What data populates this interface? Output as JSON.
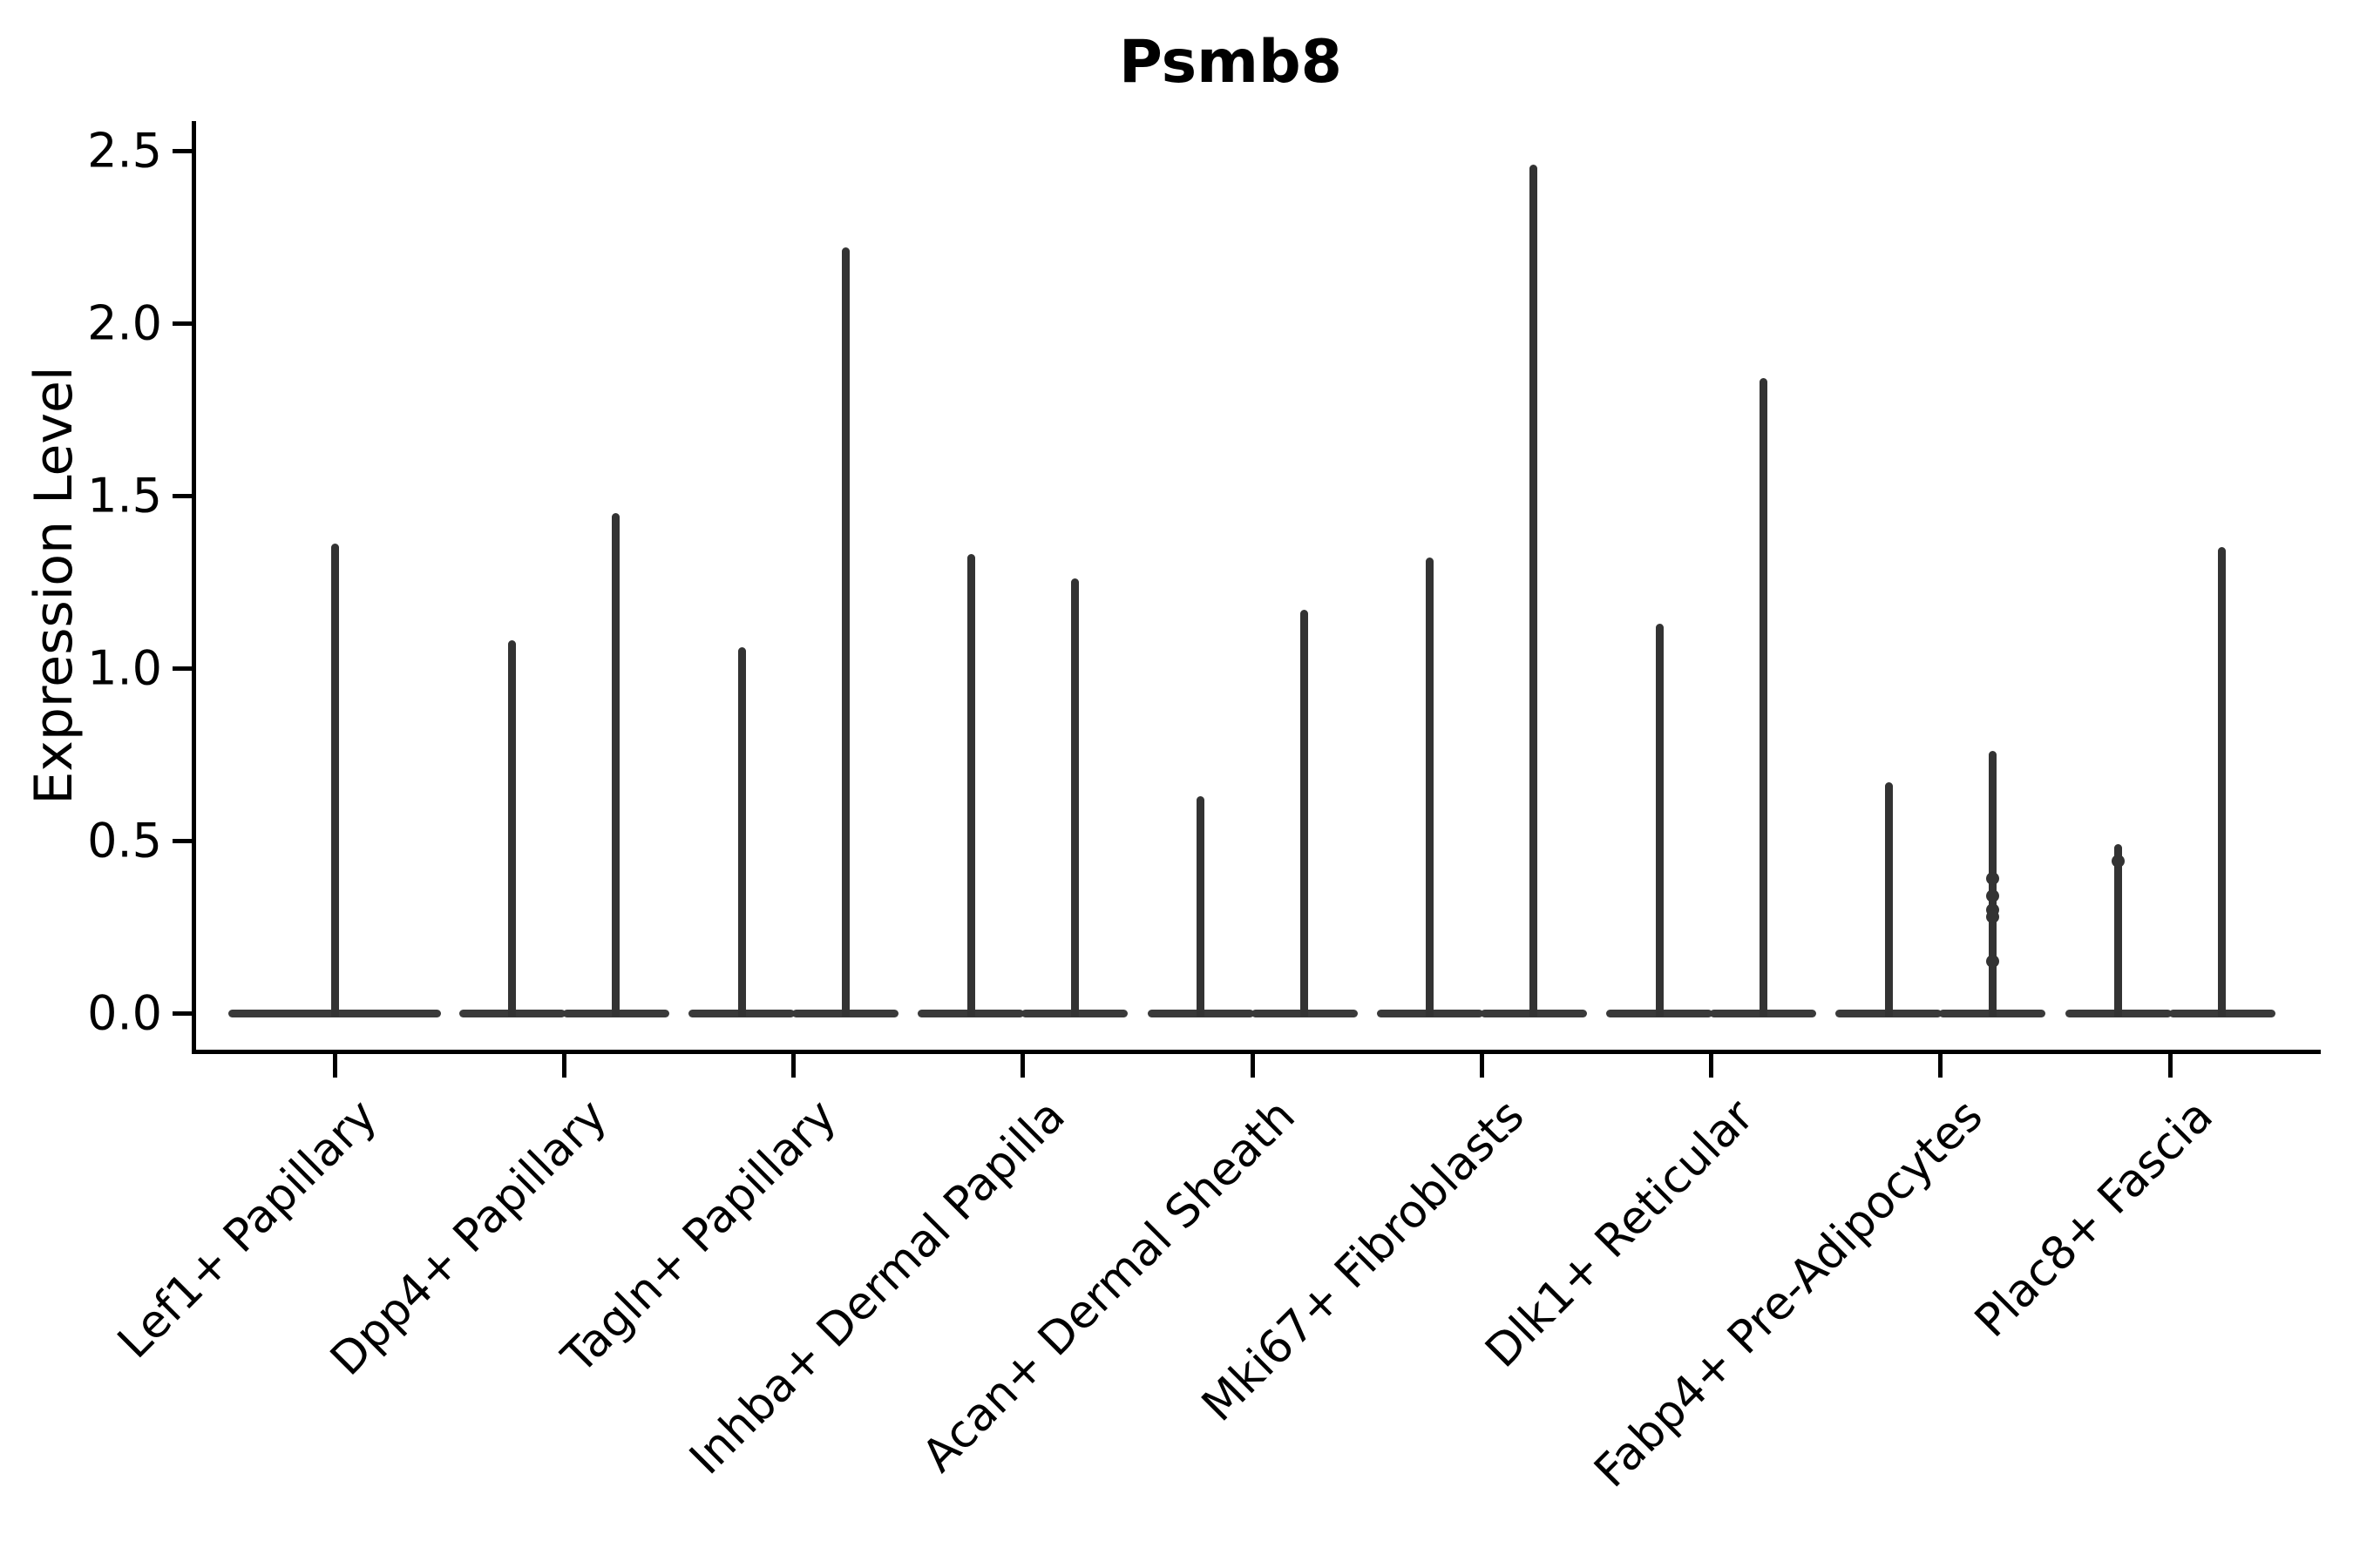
{
  "chart_data": {
    "type": "violin",
    "title": "Psmb8",
    "xlabel": "",
    "ylabel": "Expression Level",
    "ylim": [
      0,
      2.59
    ],
    "yticks": [
      0.0,
      0.5,
      1.0,
      1.5,
      2.0,
      2.5
    ],
    "ytick_labels": [
      "0.0",
      "0.5",
      "1.0",
      "1.5",
      "2.0",
      "2.5"
    ],
    "grid": false,
    "legend": "none",
    "orientation": "vertical",
    "note": "Seurat-style stacked violin of Psmb8 expression; most mass at 0 (flat baselines) with thin density spikes; two violins per category except Lef1+ Papillary which has one",
    "categories": [
      "Lef1+ Papillary",
      "Dpp4+ Papillary",
      "Tagln+ Papillary",
      "Inhba+ Dermal Papilla",
      "Acan+ Dermal Sheath",
      "Mki67+ Fibroblasts",
      "Dlk1+ Reticular",
      "Fabp4+ Pre-Adipocytes",
      "Plac8+ Fascia"
    ],
    "violins": [
      {
        "category": "Lef1+ Papillary",
        "maxima": [
          1.36
        ],
        "dots": [
          []
        ]
      },
      {
        "category": "Dpp4+ Papillary",
        "maxima": [
          1.08,
          1.45
        ],
        "dots": [
          [],
          []
        ]
      },
      {
        "category": "Tagln+ Papillary",
        "maxima": [
          1.06,
          2.22
        ],
        "dots": [
          [],
          []
        ]
      },
      {
        "category": "Inhba+ Dermal Papilla",
        "maxima": [
          1.33,
          1.26
        ],
        "dots": [
          [],
          []
        ]
      },
      {
        "category": "Acan+ Dermal Sheath",
        "maxima": [
          0.63,
          1.17
        ],
        "dots": [
          [],
          []
        ]
      },
      {
        "category": "Mki67+ Fibroblasts",
        "maxima": [
          1.32,
          2.46
        ],
        "dots": [
          [],
          []
        ]
      },
      {
        "category": "Dlk1+ Reticular",
        "maxima": [
          1.13,
          1.84
        ],
        "dots": [
          [],
          []
        ]
      },
      {
        "category": "Fabp4+ Pre-Adipocytes",
        "maxima": [
          0.67,
          0.76
        ],
        "dots": [
          [],
          [
            0.39,
            0.34,
            0.3,
            0.28,
            0.15
          ]
        ]
      },
      {
        "category": "Plac8+ Fascia",
        "maxima": [
          0.49,
          1.35
        ],
        "dots": [
          [
            0.44
          ],
          []
        ]
      }
    ],
    "colors": {
      "ink": "#000000",
      "violin_line": "#333333",
      "violin_baseline": "#3a3a3a",
      "background": "#ffffff"
    }
  }
}
